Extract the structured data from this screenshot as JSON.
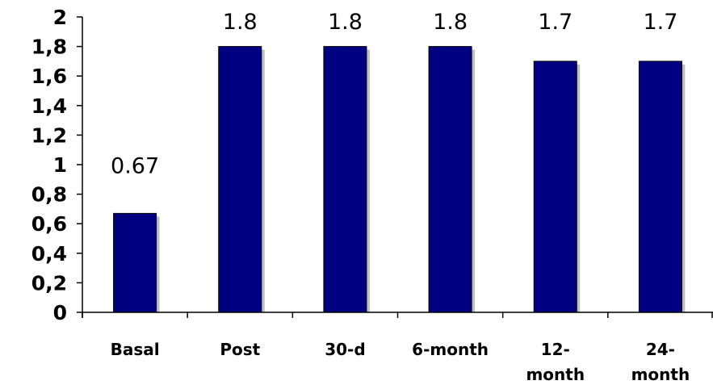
{
  "chart_data": {
    "type": "bar",
    "title": "",
    "xlabel": "",
    "ylabel": "",
    "categories": [
      "Basal",
      "Post",
      "30-d",
      "6-month",
      "12-month",
      "24-month"
    ],
    "category_tick_lines": [
      [
        "Basal"
      ],
      [
        "Post"
      ],
      [
        "30-d"
      ],
      [
        "6-month"
      ],
      [
        "12-",
        "month"
      ],
      [
        "24-",
        "month"
      ]
    ],
    "values": [
      0.67,
      1.8,
      1.8,
      1.8,
      1.7,
      1.7
    ],
    "data_labels": [
      "0.67",
      "1.8",
      "1.8",
      "1.8",
      "1.7",
      "1.7"
    ],
    "ylim": [
      0,
      2
    ],
    "yticks": [
      0,
      0.2,
      0.4,
      0.6,
      0.8,
      1,
      1.2,
      1.4,
      1.6,
      1.8,
      2
    ],
    "ytick_labels": [
      "0",
      "0,2",
      "0,4",
      "0,6",
      "0,8",
      "1",
      "1,2",
      "1,4",
      "1,6",
      "1,8",
      "2"
    ],
    "grid": false,
    "legend": "none",
    "colors": {
      "bar": "#000080",
      "shadow": "#bfbfbf",
      "axis": "#000000"
    }
  }
}
